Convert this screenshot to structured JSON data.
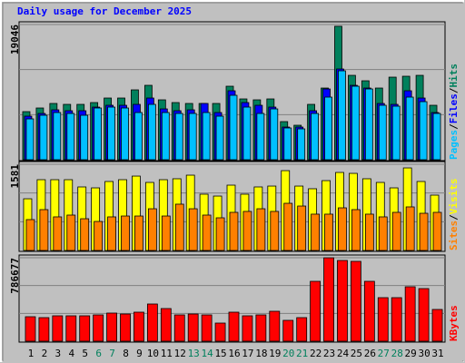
{
  "legend_separator": "/",
  "chart_data": [
    {
      "type": "bar",
      "title": "Daily usage for December 2025",
      "ylim": [
        0,
        19046
      ],
      "yticks": [
        19046
      ],
      "series": [
        {
          "name": "Hits",
          "color": "#00805c",
          "values": [
            6774,
            7285,
            7924,
            7796,
            7796,
            8051,
            8690,
            8690,
            9841,
            10480,
            8435,
            8051,
            7924,
            7924,
            7924,
            10352,
            8563,
            8435,
            8563,
            5368,
            4856,
            7796,
            10096,
            18800,
            11885,
            11119,
            10096,
            11630,
            11758,
            11885,
            7668
          ]
        },
        {
          "name": "Files",
          "color": "#0000ff",
          "values": [
            6134,
            6518,
            7029,
            6901,
            6901,
            7412,
            7668,
            7668,
            7796,
            8690,
            7157,
            6901,
            7029,
            7924,
            6646,
            9713,
            8051,
            7668,
            7412,
            4601,
            4601,
            6901,
            9968,
            12780,
            10480,
            10096,
            7924,
            7796,
            9713,
            8690,
            6646
          ]
        },
        {
          "name": "Pages",
          "color": "#00c0ff",
          "values": [
            5751,
            6262,
            6646,
            6518,
            6262,
            7285,
            7412,
            7285,
            6646,
            7796,
            6646,
            6518,
            6518,
            6646,
            6134,
            9074,
            7412,
            6518,
            7157,
            4473,
            4345,
            6518,
            8818,
            12524,
            10352,
            9968,
            7668,
            7540,
            8818,
            8179,
            6518
          ]
        }
      ]
    },
    {
      "type": "bar",
      "ylim": [
        0,
        1581
      ],
      "yticks": [
        1581
      ],
      "series": [
        {
          "name": "Visits",
          "color": "#ffff00",
          "values": [
            948,
            1298,
            1298,
            1298,
            1165,
            1148,
            1265,
            1298,
            1364,
            1248,
            1298,
            1315,
            1381,
            1032,
            998,
            1198,
            1032,
            1165,
            1181,
            1464,
            1181,
            1132,
            1281,
            1431,
            1414,
            1315,
            1248,
            1148,
            1514,
            1265,
            1015
          ]
        },
        {
          "name": "Sites",
          "color": "#ff8000",
          "values": [
            566,
            749,
            616,
            649,
            582,
            532,
            616,
            632,
            632,
            765,
            632,
            849,
            765,
            649,
            599,
            699,
            716,
            765,
            716,
            865,
            815,
            666,
            666,
            782,
            749,
            666,
            616,
            699,
            799,
            682,
            699
          ]
        }
      ]
    },
    {
      "type": "bar",
      "ylim": [
        0,
        786677
      ],
      "yticks": [
        786677
      ],
      "categories": [
        "1",
        "2",
        "3",
        "4",
        "5",
        "6",
        "7",
        "8",
        "9",
        "10",
        "11",
        "12",
        "13",
        "14",
        "15",
        "16",
        "17",
        "18",
        "19",
        "20",
        "21",
        "22",
        "23",
        "24",
        "25",
        "26",
        "27",
        "28",
        "29",
        "30",
        "31"
      ],
      "category_colors": [
        "#000000",
        "#000000",
        "#000000",
        "#000000",
        "#000000",
        "#00805c",
        "#00805c",
        "#000000",
        "#000000",
        "#000000",
        "#000000",
        "#000000",
        "#00805c",
        "#00805c",
        "#000000",
        "#000000",
        "#000000",
        "#000000",
        "#000000",
        "#00805c",
        "#00805c",
        "#000000",
        "#000000",
        "#000000",
        "#000000",
        "#000000",
        "#00805c",
        "#00805c",
        "#000000",
        "#000000",
        "#000000"
      ],
      "series": [
        {
          "name": "KBytes",
          "color": "#ff0000",
          "values": [
            230877,
            222326,
            239428,
            239428,
            239428,
            247979,
            265081,
            256530,
            273632,
            350591,
            307836,
            247979,
            256530,
            247979,
            171020,
            273632,
            239428,
            247979,
            282183,
            196673,
            222326,
            564366,
            786000,
            761039,
            752488,
            564366,
            410448,
            410448,
            513060,
            495958,
            299285
          ]
        }
      ]
    }
  ]
}
